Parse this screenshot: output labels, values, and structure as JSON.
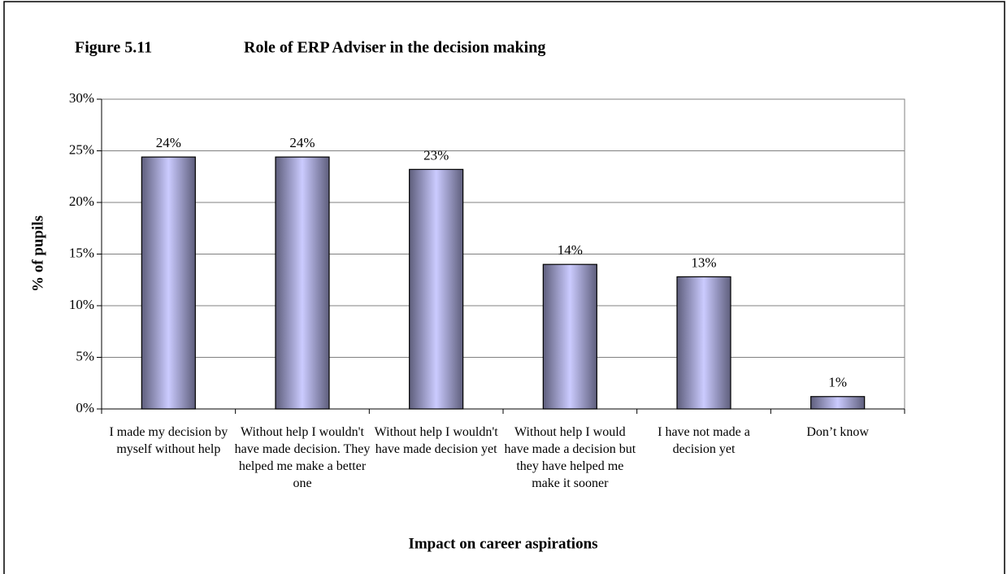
{
  "chart_data": {
    "type": "bar",
    "figure_label": "Figure 5.11",
    "title": "Role of ERP Adviser in the decision making",
    "x_label": "Impact on career aspirations",
    "y_label": "% of pupils",
    "categories": [
      "I made my decision by myself without help",
      "Without help I wouldn't have made decision. They helped me make a better one",
      "Without help I wouldn't have made decision yet",
      "Without help I would have made a decision but they have helped me make it sooner",
      "I have not made a decision yet",
      "Don’t know"
    ],
    "values": [
      24.4,
      24.4,
      23.2,
      14.0,
      12.8,
      1.2
    ],
    "value_labels": [
      "24%",
      "24%",
      "23%",
      "14%",
      "13%",
      "1%"
    ],
    "color": "#6a6a8c",
    "ylim": [
      0,
      30
    ],
    "yticks": [
      {
        "value": 0,
        "label": "0%"
      },
      {
        "value": 5,
        "label": "5%"
      },
      {
        "value": 10,
        "label": "10%"
      },
      {
        "value": 15,
        "label": "15%"
      },
      {
        "value": 20,
        "label": "20%"
      },
      {
        "value": 25,
        "label": "25%"
      },
      {
        "value": 30,
        "label": "30%"
      }
    ],
    "grid": true
  }
}
